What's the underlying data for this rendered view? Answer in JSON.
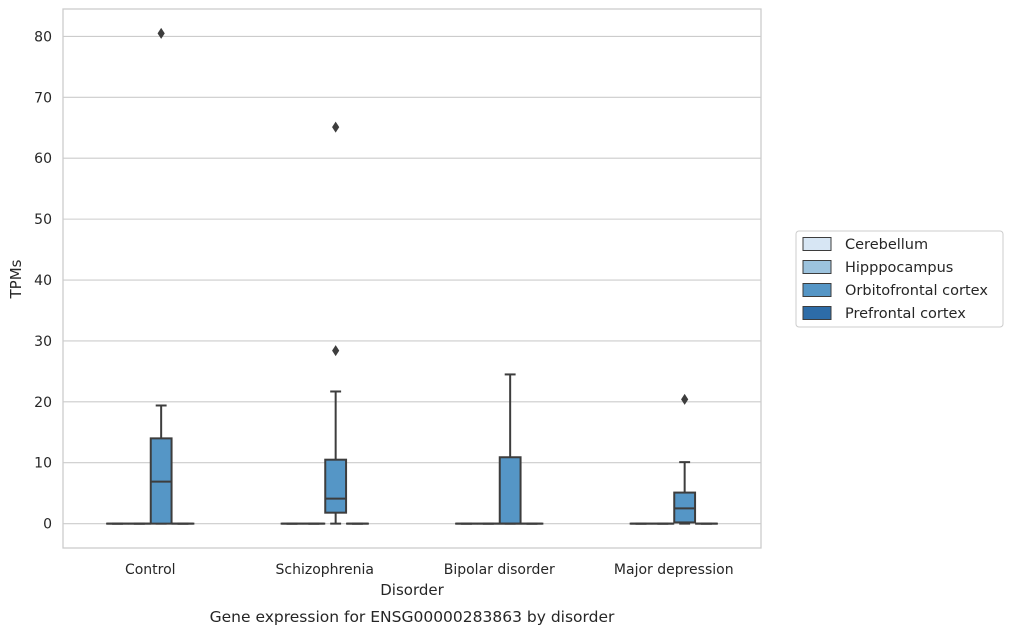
{
  "chart_data": {
    "type": "box",
    "title": "",
    "caption": "Gene expression for ENSG00000283863 by disorder",
    "xlabel": "Disorder",
    "ylabel": "TPMs",
    "ylim": [
      -4,
      84.5
    ],
    "yticks": [
      0,
      10,
      20,
      30,
      40,
      50,
      60,
      70,
      80
    ],
    "grid": "horizontal",
    "legend_position": "right",
    "categories": [
      "Control",
      "Schizophrenia",
      "Bipolar disorder",
      "Major depression"
    ],
    "series": [
      {
        "name": "Cerebellum",
        "color": "#d7e6f4",
        "boxes": [
          {
            "min": 0,
            "q1": 0,
            "median": 0,
            "q3": 0,
            "max": 0,
            "outliers": []
          },
          {
            "min": 0,
            "q1": 0,
            "median": 0,
            "q3": 0,
            "max": 0,
            "outliers": []
          },
          {
            "min": 0,
            "q1": 0,
            "median": 0,
            "q3": 0,
            "max": 0,
            "outliers": []
          },
          {
            "min": 0,
            "q1": 0,
            "median": 0,
            "q3": 0,
            "max": 0,
            "outliers": []
          }
        ]
      },
      {
        "name": "Hipppocampus",
        "color": "#9cc3de",
        "boxes": [
          {
            "min": 0,
            "q1": 0,
            "median": 0,
            "q3": 0,
            "max": 0,
            "outliers": []
          },
          {
            "min": 0,
            "q1": 0,
            "median": 0,
            "q3": 0,
            "max": 0,
            "outliers": []
          },
          {
            "min": 0,
            "q1": 0,
            "median": 0,
            "q3": 0,
            "max": 0,
            "outliers": []
          },
          {
            "min": 0,
            "q1": 0,
            "median": 0,
            "q3": 0,
            "max": 0,
            "outliers": []
          }
        ]
      },
      {
        "name": "Orbitofrontal cortex",
        "color": "#5596c6",
        "boxes": [
          {
            "min": 0,
            "q1": 0,
            "median": 6.9,
            "q3": 14.0,
            "max": 19.4,
            "outliers": [
              80.5
            ]
          },
          {
            "min": 0,
            "q1": 1.8,
            "median": 4.1,
            "q3": 10.5,
            "max": 21.7,
            "outliers": [
              28.4,
              65.1
            ]
          },
          {
            "min": 0,
            "q1": 0,
            "median": 0,
            "q3": 10.9,
            "max": 24.5,
            "outliers": []
          },
          {
            "min": 0,
            "q1": 0.2,
            "median": 2.5,
            "q3": 5.1,
            "max": 10.1,
            "outliers": [
              20.4
            ]
          }
        ]
      },
      {
        "name": "Prefrontal cortex",
        "color": "#2d6ca8",
        "boxes": [
          {
            "min": 0,
            "q1": 0,
            "median": 0,
            "q3": 0,
            "max": 0,
            "outliers": []
          },
          {
            "min": 0,
            "q1": 0,
            "median": 0,
            "q3": 0,
            "max": 0,
            "outliers": []
          },
          {
            "min": 0,
            "q1": 0,
            "median": 0,
            "q3": 0,
            "max": 0,
            "outliers": []
          },
          {
            "min": 0,
            "q1": 0,
            "median": 0,
            "q3": 0,
            "max": 0,
            "outliers": []
          }
        ]
      }
    ]
  }
}
